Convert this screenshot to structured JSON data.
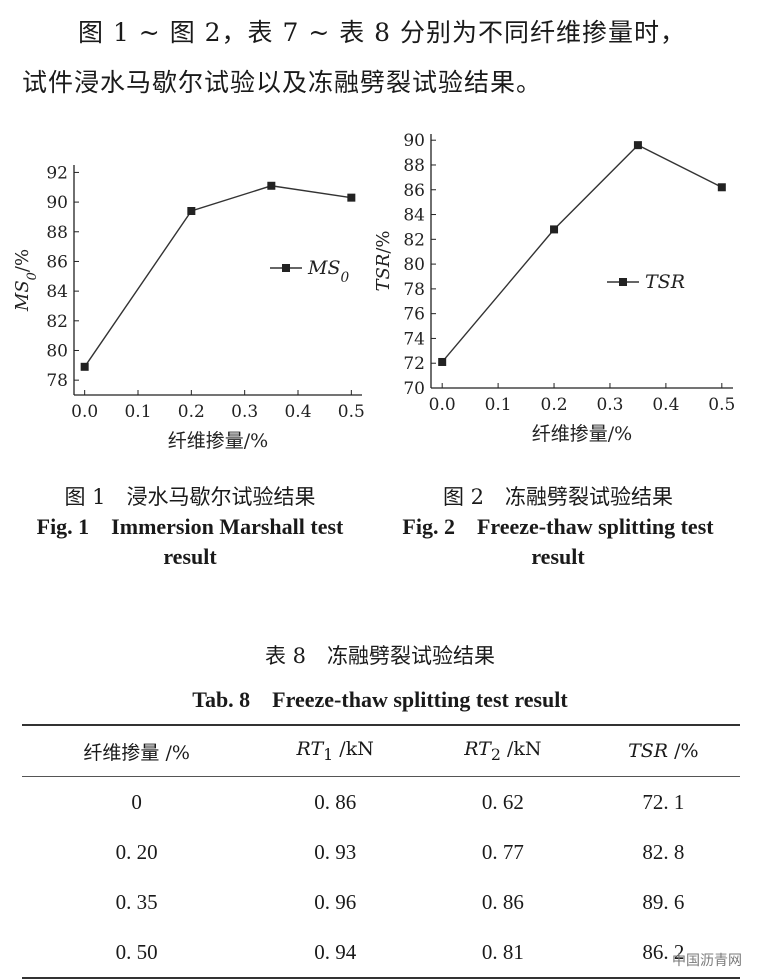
{
  "intro": {
    "line1": "图 1 ~ 图 2，表 7 ~ 表 8 分别为不同纤维掺量时，",
    "line2": "试件浸水马歇尔试验以及冻融劈裂试验结果。"
  },
  "figures": [
    {
      "caption_cn": "图 1　浸水马歇尔试验结果",
      "caption_en": "Fig. 1　Immersion Marshall test result"
    },
    {
      "caption_cn": "图 2　冻融劈裂试验结果",
      "caption_en": "Fig. 2　Freeze-thaw splitting test result"
    }
  ],
  "chart_data": [
    {
      "type": "line",
      "xlabel": "纤维掺量/%",
      "ylabel": "MS0/%",
      "x_ticks": [
        "0.0",
        "0.1",
        "0.2",
        "0.3",
        "0.4",
        "0.5"
      ],
      "y_ticks": [
        "78",
        "80",
        "82",
        "84",
        "86",
        "88",
        "90",
        "92"
      ],
      "xlim": [
        -0.02,
        0.52
      ],
      "ylim": [
        77,
        92.5
      ],
      "series": [
        {
          "name": "MS0",
          "x": [
            0,
            0.2,
            0.35,
            0.5
          ],
          "y": [
            78.9,
            89.4,
            91.1,
            90.3
          ]
        }
      ],
      "legend": "right-middle",
      "grid": false
    },
    {
      "type": "line",
      "xlabel": "纤维掺量/%",
      "ylabel": "TSR/%",
      "x_ticks": [
        "0.0",
        "0.1",
        "0.2",
        "0.3",
        "0.4",
        "0.5"
      ],
      "y_ticks": [
        "70",
        "72",
        "74",
        "76",
        "78",
        "80",
        "82",
        "84",
        "86",
        "88",
        "90"
      ],
      "xlim": [
        -0.02,
        0.52
      ],
      "ylim": [
        70,
        90.5
      ],
      "series": [
        {
          "name": "TSR",
          "x": [
            0,
            0.2,
            0.35,
            0.5
          ],
          "y": [
            72.1,
            82.8,
            89.6,
            86.2
          ]
        }
      ],
      "legend": "right-middle",
      "grid": false
    }
  ],
  "table": {
    "title_cn": "表 8　冻融劈裂试验结果",
    "title_en": "Tab. 8　Freeze-thaw splitting test result",
    "headers": [
      {
        "var": "",
        "sub": "",
        "unit": "纤维掺量 /%"
      },
      {
        "var": "RT",
        "sub": "1",
        "unit": " /kN"
      },
      {
        "var": "RT",
        "sub": "2",
        "unit": " /kN"
      },
      {
        "var": "TSR",
        "sub": "",
        "unit": " /%"
      }
    ],
    "rows": [
      [
        "0",
        "0. 86",
        "0. 62",
        "72. 1"
      ],
      [
        "0. 20",
        "0. 93",
        "0. 77",
        "82. 8"
      ],
      [
        "0. 35",
        "0. 96",
        "0. 86",
        "89. 6"
      ],
      [
        "0. 50",
        "0. 94",
        "0. 81",
        "86. 2"
      ]
    ]
  },
  "watermark": "中国沥青网"
}
